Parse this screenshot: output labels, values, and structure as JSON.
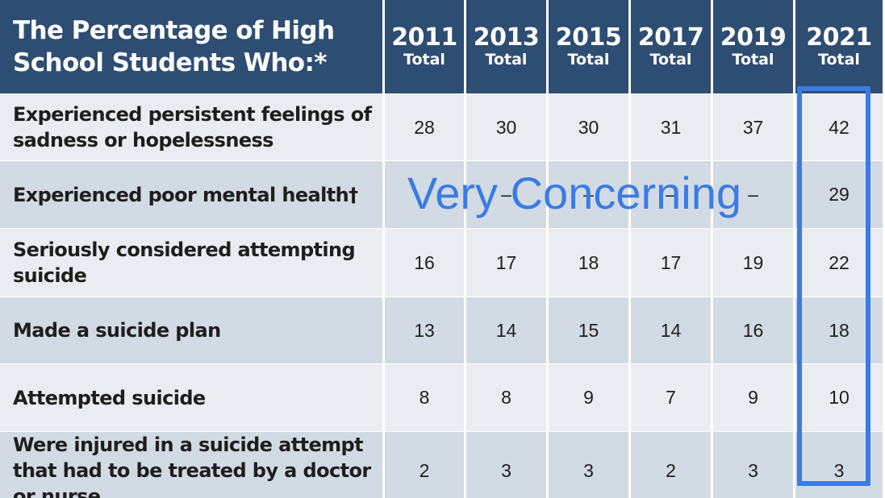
{
  "chart_data": {
    "type": "table",
    "title": "The Percentage of High School Students Who:*",
    "columns": [
      {
        "year": "2011",
        "sub": "Total"
      },
      {
        "year": "2013",
        "sub": "Total"
      },
      {
        "year": "2015",
        "sub": "Total"
      },
      {
        "year": "2017",
        "sub": "Total"
      },
      {
        "year": "2019",
        "sub": "Total"
      },
      {
        "year": "2021",
        "sub": "Total"
      }
    ],
    "rows": [
      {
        "label": "Experienced persistent feelings of sadness or hopelessness",
        "values": [
          "28",
          "30",
          "30",
          "31",
          "37",
          "42"
        ]
      },
      {
        "label": "Experienced poor mental health†",
        "values": [
          "",
          "–",
          "–",
          "–",
          "–",
          "29"
        ]
      },
      {
        "label": "Seriously considered attempting suicide",
        "values": [
          "16",
          "17",
          "18",
          "17",
          "19",
          "22"
        ]
      },
      {
        "label": "Made a suicide plan",
        "values": [
          "13",
          "14",
          "15",
          "14",
          "16",
          "18"
        ]
      },
      {
        "label": "Attempted suicide",
        "values": [
          "8",
          "8",
          "9",
          "7",
          "9",
          "10"
        ]
      },
      {
        "label": "Were injured in a suicide attempt that had to be treated by a doctor or nurse",
        "values": [
          "2",
          "3",
          "3",
          "2",
          "3",
          "3"
        ]
      }
    ],
    "highlighted_column": "2021",
    "annotation": "Very Concerning"
  },
  "colors": {
    "header_bg": "#2e4d72",
    "row_light": "#e9edf2",
    "row_dark": "#d2dbe3",
    "highlight": "#3a7be6"
  }
}
